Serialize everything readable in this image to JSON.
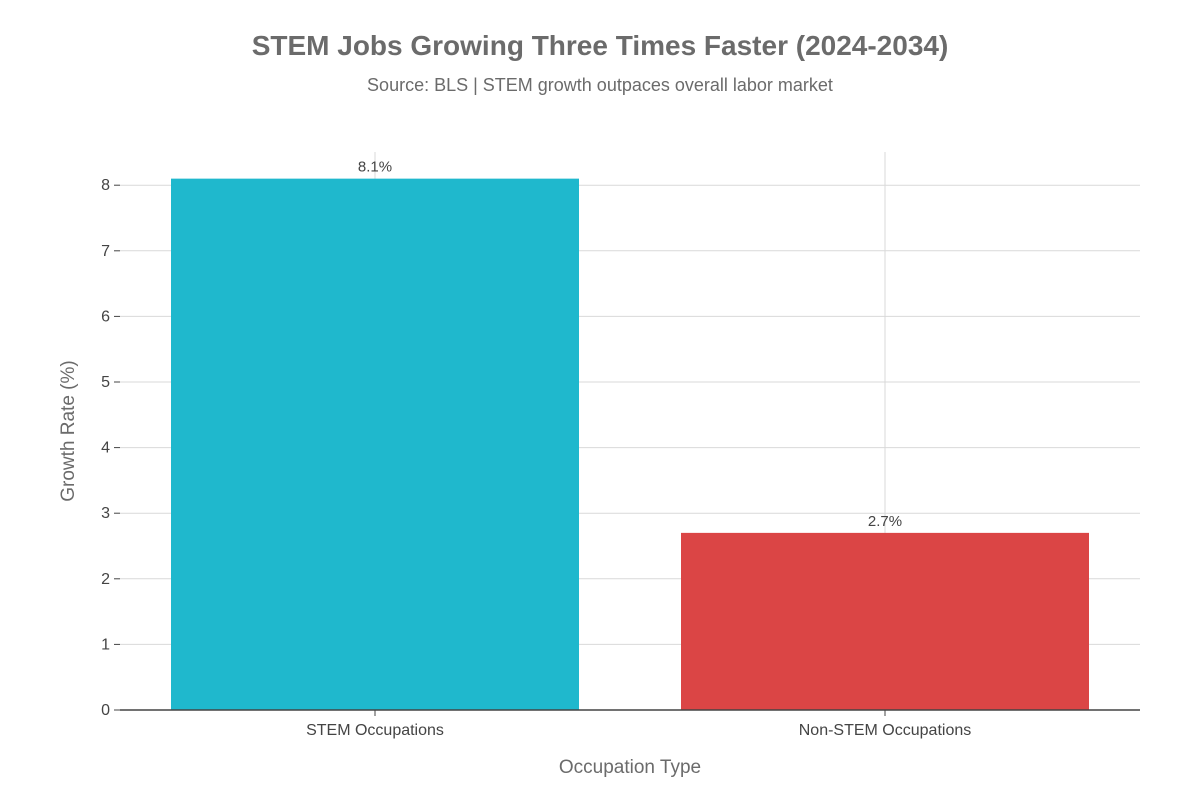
{
  "chart_data": {
    "type": "bar",
    "title": "STEM Jobs Growing Three Times Faster (2024-2034)",
    "subtitle": "Source: BLS | STEM growth outpaces overall labor market",
    "xlabel": "Occupation Type",
    "ylabel": "Growth Rate (%)",
    "categories": [
      "STEM Occupations",
      "Non-STEM Occupations"
    ],
    "values": [
      8.1,
      2.7
    ],
    "data_labels": [
      "8.1%",
      "2.7%"
    ],
    "colors": [
      "#1fb8cd",
      "#db4545"
    ],
    "ylim": [
      0,
      8.5
    ],
    "yticks": [
      0,
      1,
      2,
      3,
      4,
      5,
      6,
      7,
      8
    ],
    "grid": true,
    "legend": "none"
  }
}
